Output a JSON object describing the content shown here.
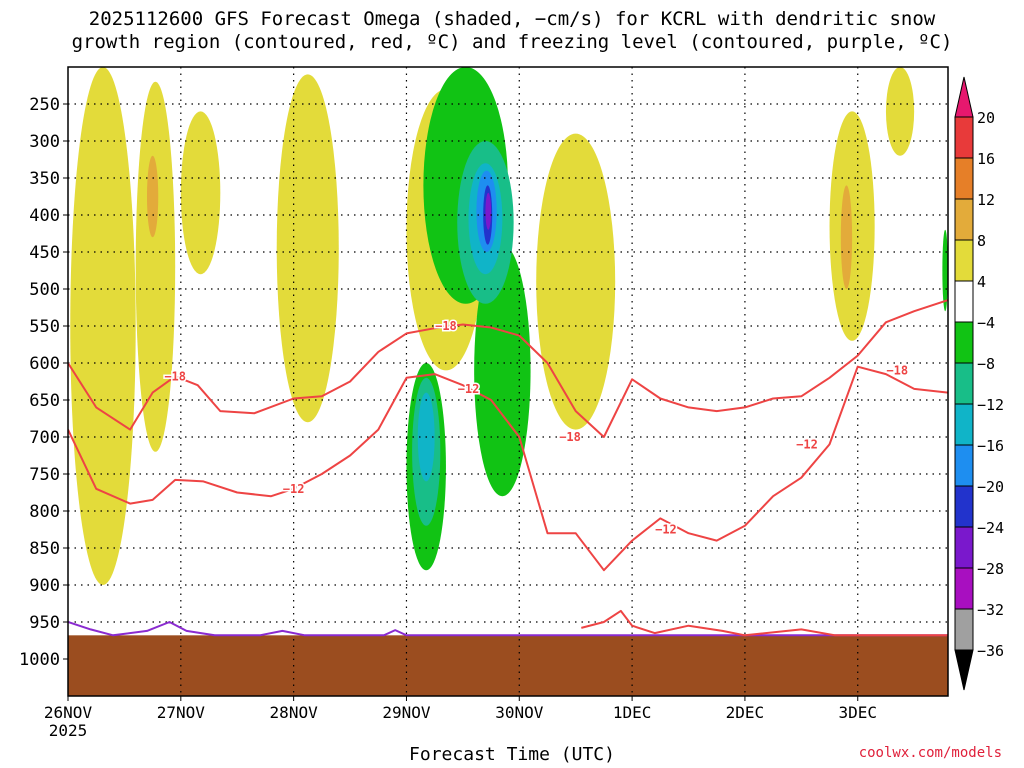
{
  "chart_data": {
    "type": "heatmap",
    "title_line1": "2025112600 GFS Forecast Omega (shaded, −cm/s) for KCRL with dendritic snow",
    "title_line2": "growth region (contoured, red, ºC) and freezing level (contoured, purple, ºC)",
    "xlabel": "Forecast Time (UTC)",
    "ylabel": "",
    "credit": "coolwx.com/models",
    "x_unit": "days since 26NOV 00Z",
    "xlim": [
      0,
      7.8
    ],
    "x_ticks": [
      {
        "x": 0,
        "label": "26NOV",
        "sublabel": "2025"
      },
      {
        "x": 1,
        "label": "27NOV"
      },
      {
        "x": 2,
        "label": "28NOV"
      },
      {
        "x": 3,
        "label": "29NOV"
      },
      {
        "x": 4,
        "label": "30NOV"
      },
      {
        "x": 5,
        "label": "1DEC"
      },
      {
        "x": 6,
        "label": "2DEC"
      },
      {
        "x": 7,
        "label": "3DEC"
      }
    ],
    "y_unit": "hPa",
    "ylim": [
      200,
      1050
    ],
    "y_ticks": [
      250,
      300,
      350,
      400,
      450,
      500,
      550,
      600,
      650,
      700,
      750,
      800,
      850,
      900,
      950,
      1000
    ],
    "gridlines": [
      250,
      300,
      350,
      400,
      450,
      500,
      550,
      600,
      650,
      700,
      750,
      800,
      850,
      900,
      950
    ],
    "ground_top_hpa": 968,
    "colorbar": {
      "levels": [
        {
          "label": "20",
          "color": "#e6186e"
        },
        {
          "label": "16",
          "color": "#e83a3a"
        },
        {
          "label": "12",
          "color": "#e67f28"
        },
        {
          "label": "8",
          "color": "#e3ab3a"
        },
        {
          "label": "4",
          "color": "#e3db3a"
        },
        {
          "label": "−4",
          "color": "#ffffff"
        },
        {
          "label": "−8",
          "color": "#11c314"
        },
        {
          "label": "−12",
          "color": "#18be88"
        },
        {
          "label": "−16",
          "color": "#10b4c8"
        },
        {
          "label": "−20",
          "color": "#1e8ef0"
        },
        {
          "label": "−24",
          "color": "#2233cc"
        },
        {
          "label": "−28",
          "color": "#7a18cc"
        },
        {
          "label": "−32",
          "color": "#a80fc0"
        },
        {
          "label": "−36",
          "color": "#a0a0a0"
        }
      ],
      "below_color": "#000000"
    },
    "contours": [
      {
        "name": "isotherm -18C",
        "label": "−18",
        "color": "#ee4444",
        "points": [
          [
            0,
            600
          ],
          [
            0.25,
            660
          ],
          [
            0.55,
            690
          ],
          [
            0.75,
            640
          ],
          [
            0.95,
            618
          ],
          [
            1.15,
            630
          ],
          [
            1.35,
            665
          ],
          [
            1.65,
            668
          ],
          [
            2.0,
            648
          ],
          [
            2.25,
            645
          ],
          [
            2.5,
            625
          ],
          [
            2.75,
            585
          ],
          [
            3.0,
            560
          ],
          [
            3.25,
            553
          ],
          [
            3.5,
            548
          ],
          [
            3.75,
            552
          ],
          [
            4.0,
            563
          ],
          [
            4.25,
            600
          ],
          [
            4.5,
            665
          ],
          [
            4.75,
            700
          ],
          [
            5.0,
            622
          ],
          [
            5.25,
            648
          ],
          [
            5.5,
            660
          ],
          [
            5.75,
            665
          ],
          [
            6.0,
            660
          ],
          [
            6.25,
            648
          ],
          [
            6.5,
            645
          ],
          [
            6.75,
            620
          ],
          [
            7.0,
            590
          ],
          [
            7.25,
            545
          ],
          [
            7.5,
            530
          ],
          [
            7.8,
            515
          ]
        ],
        "label_at": [
          [
            0.95,
            618
          ],
          [
            3.35,
            550
          ],
          [
            4.45,
            700
          ],
          [
            7.35,
            610
          ]
        ]
      },
      {
        "name": "isotherm -12C",
        "label": "−12",
        "color": "#ee4444",
        "points": [
          [
            0,
            690
          ],
          [
            0.25,
            770
          ],
          [
            0.55,
            790
          ],
          [
            0.75,
            785
          ],
          [
            0.95,
            758
          ],
          [
            1.2,
            760
          ],
          [
            1.5,
            775
          ],
          [
            1.8,
            780
          ],
          [
            2.0,
            770
          ],
          [
            2.25,
            750
          ],
          [
            2.5,
            725
          ],
          [
            2.75,
            690
          ],
          [
            3.0,
            620
          ],
          [
            3.25,
            615
          ],
          [
            3.5,
            630
          ],
          [
            3.75,
            650
          ],
          [
            4.0,
            700
          ],
          [
            4.25,
            830
          ],
          [
            4.5,
            830
          ],
          [
            4.75,
            880
          ],
          [
            5.0,
            840
          ],
          [
            5.25,
            810
          ],
          [
            5.5,
            830
          ],
          [
            5.75,
            840
          ],
          [
            6.0,
            820
          ],
          [
            6.25,
            780
          ],
          [
            6.5,
            755
          ],
          [
            6.75,
            710
          ],
          [
            7.0,
            605
          ],
          [
            7.25,
            615
          ],
          [
            7.5,
            635
          ],
          [
            7.8,
            640
          ]
        ],
        "label_at": [
          [
            2.0,
            770
          ],
          [
            3.55,
            635
          ],
          [
            5.3,
            825
          ],
          [
            6.55,
            710
          ]
        ]
      },
      {
        "name": "freezing level",
        "label": "",
        "color": "#8a2bd0",
        "points": [
          [
            0,
            950
          ],
          [
            0.2,
            960
          ],
          [
            0.4,
            968
          ],
          [
            0.7,
            962
          ],
          [
            0.9,
            950
          ],
          [
            1.05,
            962
          ],
          [
            1.3,
            968
          ],
          [
            1.7,
            968
          ],
          [
            1.9,
            962
          ],
          [
            2.1,
            968
          ],
          [
            2.8,
            968
          ],
          [
            2.9,
            961
          ],
          [
            3.0,
            968
          ],
          [
            7.8,
            968
          ]
        ],
        "label_at": []
      }
    ],
    "snow_region_contours": [
      {
        "label": "",
        "color": "#ee4444",
        "points": [
          [
            4.55,
            958
          ],
          [
            4.75,
            950
          ],
          [
            4.9,
            935
          ],
          [
            5.0,
            955
          ],
          [
            5.2,
            965
          ],
          [
            5.5,
            955
          ],
          [
            5.8,
            962
          ],
          [
            6.0,
            968
          ],
          [
            6.5,
            960
          ],
          [
            6.8,
            968
          ],
          [
            7.8,
            968
          ]
        ]
      }
    ],
    "shaded_regions": [
      {
        "color": "#e3db3a",
        "x": [
          0.02,
          0.6
        ],
        "p": [
          200,
          900
        ]
      },
      {
        "color": "#e3db3a",
        "x": [
          0.6,
          0.95
        ],
        "p": [
          220,
          720
        ]
      },
      {
        "color": "#e3db3a",
        "x": [
          1.0,
          1.35
        ],
        "p": [
          260,
          480
        ]
      },
      {
        "color": "#e3db3a",
        "x": [
          1.85,
          2.4
        ],
        "p": [
          210,
          680
        ]
      },
      {
        "color": "#e3db3a",
        "x": [
          3.0,
          3.7
        ],
        "p": [
          230,
          610
        ]
      },
      {
        "color": "#e3db3a",
        "x": [
          4.15,
          4.85
        ],
        "p": [
          290,
          690
        ]
      },
      {
        "color": "#e3db3a",
        "x": [
          6.75,
          7.15
        ],
        "p": [
          260,
          570
        ]
      },
      {
        "color": "#e3db3a",
        "x": [
          7.25,
          7.5
        ],
        "p": [
          200,
          320
        ]
      },
      {
        "color": "#e3ab3a",
        "x": [
          0.7,
          0.8
        ],
        "p": [
          320,
          430
        ]
      },
      {
        "color": "#e3ab3a",
        "x": [
          6.85,
          6.95
        ],
        "p": [
          360,
          500
        ]
      },
      {
        "color": "#11c314",
        "x": [
          3.15,
          3.9
        ],
        "p": [
          200,
          520
        ]
      },
      {
        "color": "#11c314",
        "x": [
          3.0,
          3.35
        ],
        "p": [
          600,
          880
        ]
      },
      {
        "color": "#11c314",
        "x": [
          3.6,
          4.1
        ],
        "p": [
          440,
          780
        ]
      },
      {
        "color": "#11c314",
        "x": [
          7.75,
          7.8
        ],
        "p": [
          420,
          530
        ]
      },
      {
        "color": "#18be88",
        "x": [
          3.45,
          3.95
        ],
        "p": [
          300,
          520
        ]
      },
      {
        "color": "#18be88",
        "x": [
          3.05,
          3.3
        ],
        "p": [
          620,
          820
        ]
      },
      {
        "color": "#10b4c8",
        "x": [
          3.55,
          3.85
        ],
        "p": [
          330,
          480
        ]
      },
      {
        "color": "#10b4c8",
        "x": [
          3.1,
          3.25
        ],
        "p": [
          640,
          760
        ]
      },
      {
        "color": "#1e8ef0",
        "x": [
          3.62,
          3.8
        ],
        "p": [
          340,
          450
        ]
      },
      {
        "color": "#2233cc",
        "x": [
          3.68,
          3.76
        ],
        "p": [
          360,
          440
        ]
      },
      {
        "color": "#7a18cc",
        "x": [
          3.7,
          3.75
        ],
        "p": [
          370,
          420
        ]
      }
    ]
  }
}
